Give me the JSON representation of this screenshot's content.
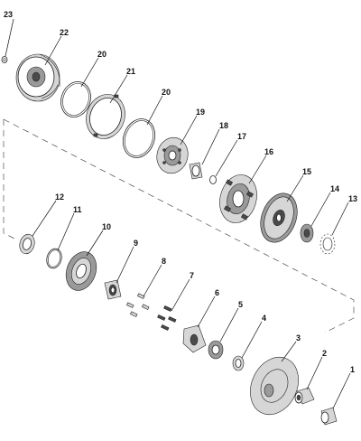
{
  "labels": {
    "p1": "1",
    "p2": "2",
    "p3": "3",
    "p4": "4",
    "p5": "5",
    "p6": "6",
    "p7": "7",
    "p8": "8",
    "p9": "9",
    "p10": "10",
    "p11": "11",
    "p12": "12",
    "p13": "13",
    "p14": "14",
    "p15": "15",
    "p16": "16",
    "p17": "17",
    "p18": "18",
    "p19": "19",
    "p20a": "20",
    "p20b": "20",
    "p21": "21",
    "p22": "22",
    "p23": "23"
  }
}
